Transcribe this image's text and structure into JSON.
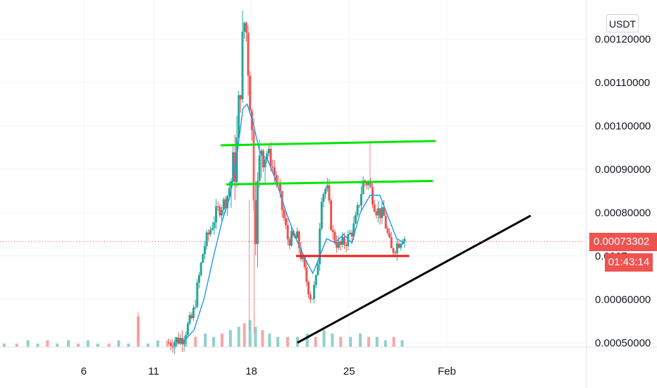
{
  "chart_data": {
    "type": "candlestick",
    "unit": "USDT",
    "last_price": "0.00073302",
    "countdown": "01:43:14",
    "y_axis": {
      "range": [
        0.00049,
        0.00129
      ],
      "ticks": [
        {
          "value": 0.0005,
          "label": "0.00050000"
        },
        {
          "value": 0.0006,
          "label": "0.00060000"
        },
        {
          "value": 0.0007,
          "label": "0.0007"
        },
        {
          "value": 0.0008,
          "label": "0.00080000"
        },
        {
          "value": 0.0009,
          "label": "0.00090000"
        },
        {
          "value": 0.001,
          "label": "0.00100000"
        },
        {
          "value": 0.0011,
          "label": "0.00110000"
        },
        {
          "value": 0.0012,
          "label": "0.00120000"
        }
      ]
    },
    "x_axis": {
      "range_day": [
        0,
        42
      ],
      "ticks": [
        {
          "day": 6,
          "label": "6"
        },
        {
          "day": 11,
          "label": "11"
        },
        {
          "day": 18,
          "label": "18"
        },
        {
          "day": 25,
          "label": "25"
        },
        {
          "day": 32,
          "label": "Feb"
        }
      ]
    },
    "price_path": [
      {
        "day": 12.1,
        "price": 0.0005
      },
      {
        "day": 13.0,
        "price": 0.00051
      },
      {
        "day": 13.8,
        "price": 0.00056
      },
      {
        "day": 14.6,
        "price": 0.00072
      },
      {
        "day": 15.5,
        "price": 0.0008
      },
      {
        "day": 16.2,
        "price": 0.00083
      },
      {
        "day": 16.9,
        "price": 0.00092
      },
      {
        "day": 17.3,
        "price": 0.00115
      },
      {
        "day": 17.55,
        "price": 0.00126
      },
      {
        "day": 17.9,
        "price": 0.00108
      },
      {
        "day": 18.3,
        "price": 0.00078
      },
      {
        "day": 18.7,
        "price": 0.00096
      },
      {
        "day": 19.3,
        "price": 0.00093
      },
      {
        "day": 19.9,
        "price": 0.00086
      },
      {
        "day": 20.6,
        "price": 0.00074
      },
      {
        "day": 21.3,
        "price": 0.00074
      },
      {
        "day": 21.9,
        "price": 0.00065
      },
      {
        "day": 22.3,
        "price": 0.0006
      },
      {
        "day": 22.7,
        "price": 0.00065
      },
      {
        "day": 23.0,
        "price": 0.00084
      },
      {
        "day": 23.4,
        "price": 0.00086
      },
      {
        "day": 23.8,
        "price": 0.00075
      },
      {
        "day": 24.3,
        "price": 0.00072
      },
      {
        "day": 24.9,
        "price": 0.00074
      },
      {
        "day": 25.4,
        "price": 0.00077
      },
      {
        "day": 26.0,
        "price": 0.00087
      },
      {
        "day": 26.4,
        "price": 0.00087
      },
      {
        "day": 26.9,
        "price": 0.00081
      },
      {
        "day": 27.5,
        "price": 0.00079
      },
      {
        "day": 28.0,
        "price": 0.00071
      },
      {
        "day": 28.5,
        "price": 0.00073
      },
      {
        "day": 28.9,
        "price": 0.00075
      },
      {
        "day": 29.1,
        "price": 0.00073
      }
    ],
    "moving_average": [
      {
        "day": 13.1,
        "price": 0.0005
      },
      {
        "day": 13.9,
        "price": 0.00053
      },
      {
        "day": 14.6,
        "price": 0.0006
      },
      {
        "day": 15.3,
        "price": 0.0007
      },
      {
        "day": 15.9,
        "price": 0.00078
      },
      {
        "day": 16.5,
        "price": 0.00084
      },
      {
        "day": 17.0,
        "price": 0.00094
      },
      {
        "day": 17.4,
        "price": 0.00104
      },
      {
        "day": 17.7,
        "price": 0.00105
      },
      {
        "day": 18.1,
        "price": 0.00101
      },
      {
        "day": 18.6,
        "price": 0.00094
      },
      {
        "day": 19.2,
        "price": 0.00092
      },
      {
        "day": 19.8,
        "price": 0.00087
      },
      {
        "day": 20.5,
        "price": 0.0008
      },
      {
        "day": 21.2,
        "price": 0.00074
      },
      {
        "day": 21.9,
        "price": 0.00069
      },
      {
        "day": 22.4,
        "price": 0.00066
      },
      {
        "day": 22.9,
        "price": 0.0007
      },
      {
        "day": 23.4,
        "price": 0.00074
      },
      {
        "day": 24.0,
        "price": 0.00073
      },
      {
        "day": 24.6,
        "price": 0.00075
      },
      {
        "day": 25.2,
        "price": 0.00073
      },
      {
        "day": 25.8,
        "price": 0.0008
      },
      {
        "day": 26.5,
        "price": 0.00084
      },
      {
        "day": 27.2,
        "price": 0.00084
      },
      {
        "day": 27.8,
        "price": 0.00079
      },
      {
        "day": 28.4,
        "price": 0.00074
      },
      {
        "day": 29.0,
        "price": 0.00073
      }
    ],
    "volume_max": 10,
    "volume": [
      {
        "day": 0.3,
        "v": 1
      },
      {
        "day": 1.2,
        "v": 1
      },
      {
        "day": 2.0,
        "v": 2
      },
      {
        "day": 2.7,
        "v": 1
      },
      {
        "day": 3.4,
        "v": 2
      },
      {
        "day": 4.1,
        "v": 1
      },
      {
        "day": 4.9,
        "v": 2
      },
      {
        "day": 5.6,
        "v": 1
      },
      {
        "day": 6.3,
        "v": 2
      },
      {
        "day": 7.0,
        "v": 1
      },
      {
        "day": 7.8,
        "v": 1
      },
      {
        "day": 8.5,
        "v": 2
      },
      {
        "day": 9.2,
        "v": 1
      },
      {
        "day": 9.9,
        "v": 9
      },
      {
        "day": 10.6,
        "v": 1
      },
      {
        "day": 11.3,
        "v": 2
      },
      {
        "day": 12.0,
        "v": 2
      },
      {
        "day": 12.6,
        "v": 3
      },
      {
        "day": 13.3,
        "v": 2
      },
      {
        "day": 14.0,
        "v": 3
      },
      {
        "day": 14.7,
        "v": 4
      },
      {
        "day": 15.3,
        "v": 3
      },
      {
        "day": 15.9,
        "v": 4
      },
      {
        "day": 16.5,
        "v": 5
      },
      {
        "day": 17.1,
        "v": 6
      },
      {
        "day": 17.5,
        "v": 7
      },
      {
        "day": 17.9,
        "v": 8
      },
      {
        "day": 18.3,
        "v": 6
      },
      {
        "day": 18.8,
        "v": 5
      },
      {
        "day": 19.3,
        "v": 4
      },
      {
        "day": 19.9,
        "v": 3
      },
      {
        "day": 20.6,
        "v": 3
      },
      {
        "day": 21.3,
        "v": 3
      },
      {
        "day": 22.0,
        "v": 4
      },
      {
        "day": 22.6,
        "v": 3
      },
      {
        "day": 23.2,
        "v": 5
      },
      {
        "day": 23.8,
        "v": 4
      },
      {
        "day": 24.4,
        "v": 3
      },
      {
        "day": 25.1,
        "v": 3
      },
      {
        "day": 25.8,
        "v": 4
      },
      {
        "day": 26.4,
        "v": 3
      },
      {
        "day": 27.0,
        "v": 3
      },
      {
        "day": 27.6,
        "v": 2
      },
      {
        "day": 28.2,
        "v": 3
      },
      {
        "day": 28.8,
        "v": 2
      }
    ],
    "annotations": [
      {
        "kind": "resistance",
        "color": "#00e600",
        "from": {
          "day": 15.8,
          "price": 0.000955
        },
        "to": {
          "day": 31.2,
          "price": 0.000965
        }
      },
      {
        "kind": "resistance",
        "color": "#00e600",
        "from": {
          "day": 16.2,
          "price": 0.000865
        },
        "to": {
          "day": 31.0,
          "price": 0.000873
        }
      },
      {
        "kind": "support",
        "color": "#f01818",
        "from": {
          "day": 21.2,
          "price": 0.0007
        },
        "to": {
          "day": 29.3,
          "price": 0.0007
        }
      },
      {
        "kind": "trendline",
        "color": "#000000",
        "from": {
          "day": 21.3,
          "price": 0.0005
        },
        "to": {
          "day": 38.0,
          "price": 0.000793
        }
      }
    ],
    "colors": {
      "up": "#26a69a",
      "down": "#ef5350",
      "ma": "#2196f3",
      "grid": "#f0f3fa",
      "price_line": "#ef5350"
    }
  }
}
